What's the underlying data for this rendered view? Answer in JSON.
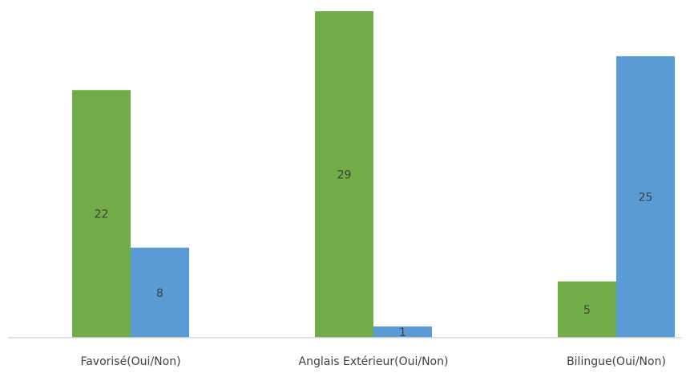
{
  "chart_data": {
    "type": "bar",
    "categories": [
      "Favorisé(Oui/Non)",
      "Anglais Extérieur(Oui/Non)",
      "Bilingue(Oui/Non)"
    ],
    "series": [
      {
        "values": [
          22,
          29,
          5
        ],
        "color": "#70ad47"
      },
      {
        "values": [
          8,
          1,
          25
        ],
        "color": "#5b9bd5"
      }
    ],
    "title": "",
    "xlabel": "",
    "ylabel": "",
    "ylim": [
      0,
      29
    ],
    "grid": false,
    "legend": "none",
    "data_labels": true
  },
  "colors": {
    "axis": "#d9d9d9",
    "label_text": "#404040"
  }
}
